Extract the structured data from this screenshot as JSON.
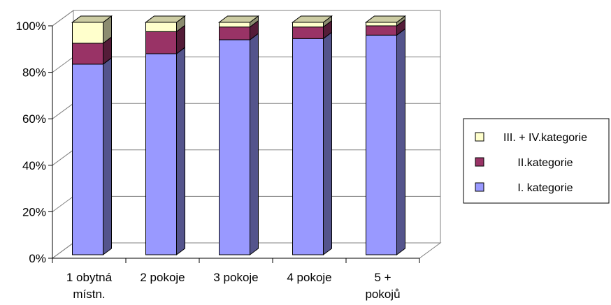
{
  "chart_data": {
    "type": "bar",
    "stacked": true,
    "percent_stacked": true,
    "three_d": true,
    "categories": [
      [
        "1 obytná",
        "místn."
      ],
      [
        "2 pokoje"
      ],
      [
        "3 pokoje"
      ],
      [
        "4 pokoje"
      ],
      [
        "5 +",
        "pokojů"
      ]
    ],
    "series": [
      {
        "name": "I. kategorie",
        "values": [
          82,
          86.5,
          92.5,
          93,
          94.5
        ],
        "color": "#9999ff"
      },
      {
        "name": "II.kategorie",
        "values": [
          9,
          9.5,
          5.5,
          5,
          4
        ],
        "color": "#993366"
      },
      {
        "name": "III. + IV.kategorie",
        "values": [
          9,
          4,
          2,
          2,
          1.5
        ],
        "color": "#ffffcc"
      }
    ],
    "legend_order": [
      "III. + IV.kategorie",
      "II.kategorie",
      "I. kategorie"
    ],
    "y_ticks": [
      "0%",
      "20%",
      "40%",
      "60%",
      "80%",
      "100%"
    ],
    "ylim": [
      0,
      100
    ],
    "grid": true,
    "legend_position": "right"
  }
}
